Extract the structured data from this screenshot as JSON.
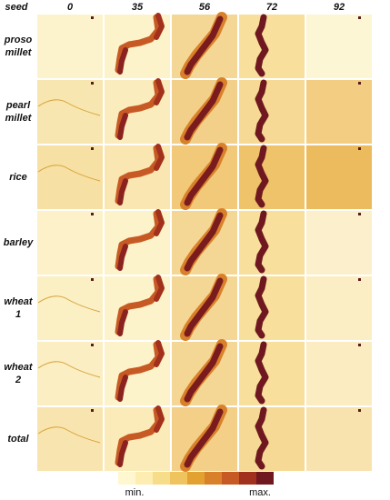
{
  "corner": "seed",
  "columns": [
    "0",
    "35",
    "56",
    "72",
    "92"
  ],
  "rows": [
    [
      "proso",
      "millet"
    ],
    [
      "pearl",
      "millet"
    ],
    [
      "rice"
    ],
    [
      "barley"
    ],
    [
      "wheat",
      "1"
    ],
    [
      "wheat",
      "2"
    ],
    [
      "total"
    ]
  ],
  "legend": {
    "colors": [
      "#fff7d0",
      "#fdedb0",
      "#f7dc8a",
      "#efc35e",
      "#e3a22f",
      "#d9812a",
      "#c75a24",
      "#a1301c",
      "#6f1820"
    ],
    "min_label": "min.",
    "max_label": "max."
  }
}
